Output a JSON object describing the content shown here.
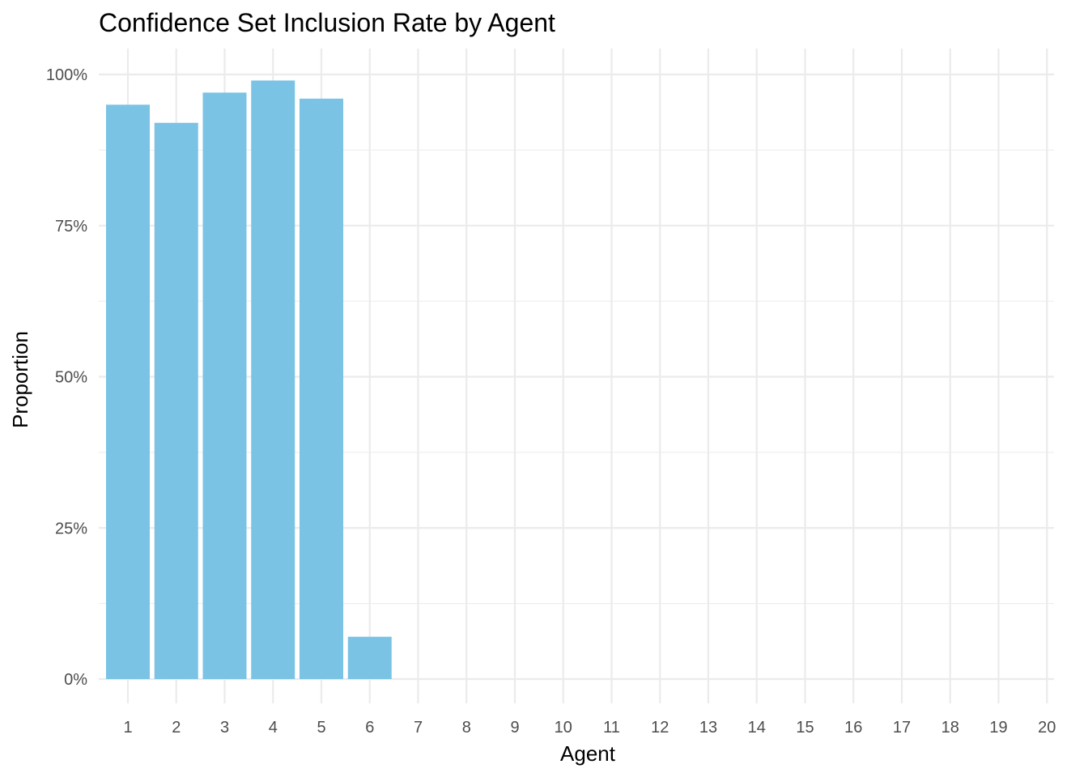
{
  "chart_data": {
    "type": "bar",
    "title": "Confidence Set Inclusion Rate by Agent",
    "xlabel": "Agent",
    "ylabel": "Proportion",
    "categories": [
      "1",
      "2",
      "3",
      "4",
      "5",
      "6",
      "7",
      "8",
      "9",
      "10",
      "11",
      "12",
      "13",
      "14",
      "15",
      "16",
      "17",
      "18",
      "19",
      "20"
    ],
    "values": [
      0.95,
      0.92,
      0.97,
      0.99,
      0.96,
      0.07,
      0,
      0,
      0,
      0,
      0,
      0,
      0,
      0,
      0,
      0,
      0,
      0,
      0,
      0
    ],
    "ylim": [
      0,
      1
    ],
    "y_ticks": [
      0,
      0.25,
      0.5,
      0.75,
      1.0
    ],
    "y_tick_labels": [
      "0%",
      "25%",
      "50%",
      "75%",
      "100%"
    ],
    "bar_color": "#7AC3E5",
    "grid": true,
    "legend": "none"
  }
}
